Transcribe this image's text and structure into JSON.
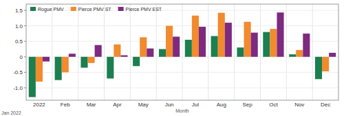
{
  "chart_data": {
    "type": "bar",
    "x_label": "Month",
    "annotation": "Jan 2022",
    "categories": [
      "2022",
      "Feb",
      "Mar",
      "Apr",
      "May",
      "Jun",
      "Jul",
      "Aug",
      "Sep",
      "Oct",
      "Nov",
      "Dec"
    ],
    "series": [
      {
        "name": "Rogue PMV",
        "color": "#1b7f4f",
        "values": [
          -1.3,
          -0.75,
          -0.35,
          -0.7,
          -0.3,
          0.25,
          0.55,
          0.67,
          0.3,
          0.8,
          0.08,
          -0.72
        ]
      },
      {
        "name": "Pierce PMV ST",
        "color": "#f28a2e",
        "values": [
          -0.8,
          -0.5,
          -0.2,
          0.4,
          0.63,
          1.0,
          1.33,
          1.42,
          1.13,
          0.9,
          0.22,
          -0.47
        ]
      },
      {
        "name": "Pierce PMV EST",
        "color": "#7d2a80",
        "values": [
          -0.15,
          0.1,
          0.38,
          0.05,
          0.27,
          0.65,
          0.97,
          1.1,
          0.78,
          1.43,
          0.75,
          0.13
        ]
      }
    ],
    "ylim": [
      -1.4,
      1.7
    ],
    "yticks": [
      {
        "value": -1,
        "label": "-1.0"
      },
      {
        "value": -0.5,
        "label": "-0.5"
      },
      0,
      0.5,
      {
        "value": 1,
        "label": "1.0"
      },
      1.5
    ],
    "grid": true,
    "legend": "top-left"
  }
}
